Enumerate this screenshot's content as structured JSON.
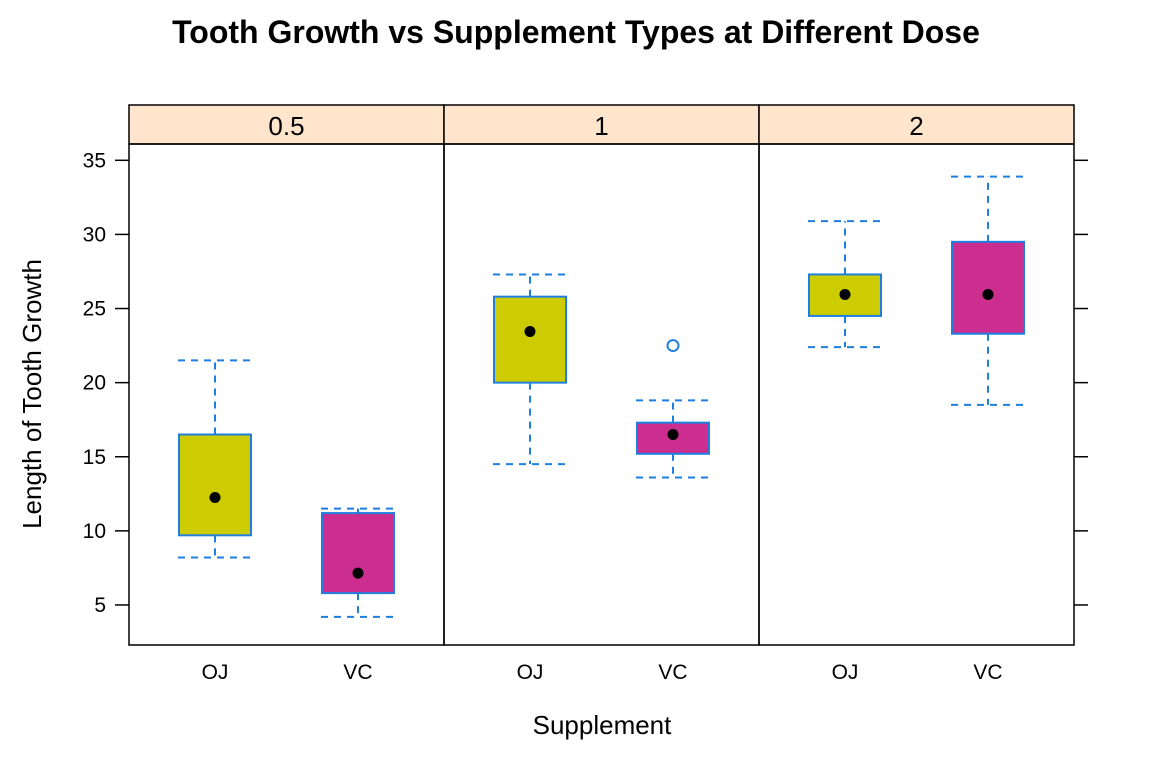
{
  "chart_data": {
    "type": "box",
    "title": "Tooth Growth vs Supplement Types at Different Dose",
    "xlabel": "Supplement",
    "ylabel": "Length of Tooth Growth",
    "ylim": [
      2.3,
      36.1
    ],
    "yticks": [
      5,
      10,
      15,
      20,
      25,
      30,
      35
    ],
    "categories": [
      "OJ",
      "VC"
    ],
    "panels": [
      {
        "label": "0.5",
        "boxes": [
          {
            "category": "OJ",
            "min": 8.2,
            "q1": 9.7,
            "median": 12.25,
            "q3": 16.5,
            "max": 21.5,
            "outliers": []
          },
          {
            "category": "VC",
            "min": 4.2,
            "q1": 5.8,
            "median": 7.15,
            "q3": 11.2,
            "max": 11.5,
            "outliers": []
          }
        ]
      },
      {
        "label": "1",
        "boxes": [
          {
            "category": "OJ",
            "min": 14.5,
            "q1": 20.0,
            "median": 23.45,
            "q3": 25.8,
            "max": 27.3,
            "outliers": []
          },
          {
            "category": "VC",
            "min": 13.6,
            "q1": 15.2,
            "median": 16.5,
            "q3": 17.3,
            "max": 18.8,
            "outliers": [
              22.5
            ]
          }
        ]
      },
      {
        "label": "2",
        "boxes": [
          {
            "category": "OJ",
            "min": 22.4,
            "q1": 24.5,
            "median": 25.95,
            "q3": 27.3,
            "max": 30.9,
            "outliers": []
          },
          {
            "category": "VC",
            "min": 18.5,
            "q1": 23.3,
            "median": 25.95,
            "q3": 29.5,
            "max": 33.9,
            "outliers": []
          }
        ]
      }
    ],
    "colors": {
      "OJ_fill": "#cccc00",
      "VC_fill": "#cc2e8f",
      "box_border": "#1f7fe0",
      "whisker": "#1f7fe0",
      "median_dot": "#000000",
      "strip_bg": "#ffe5cc"
    },
    "grid": false,
    "legend": "none"
  }
}
